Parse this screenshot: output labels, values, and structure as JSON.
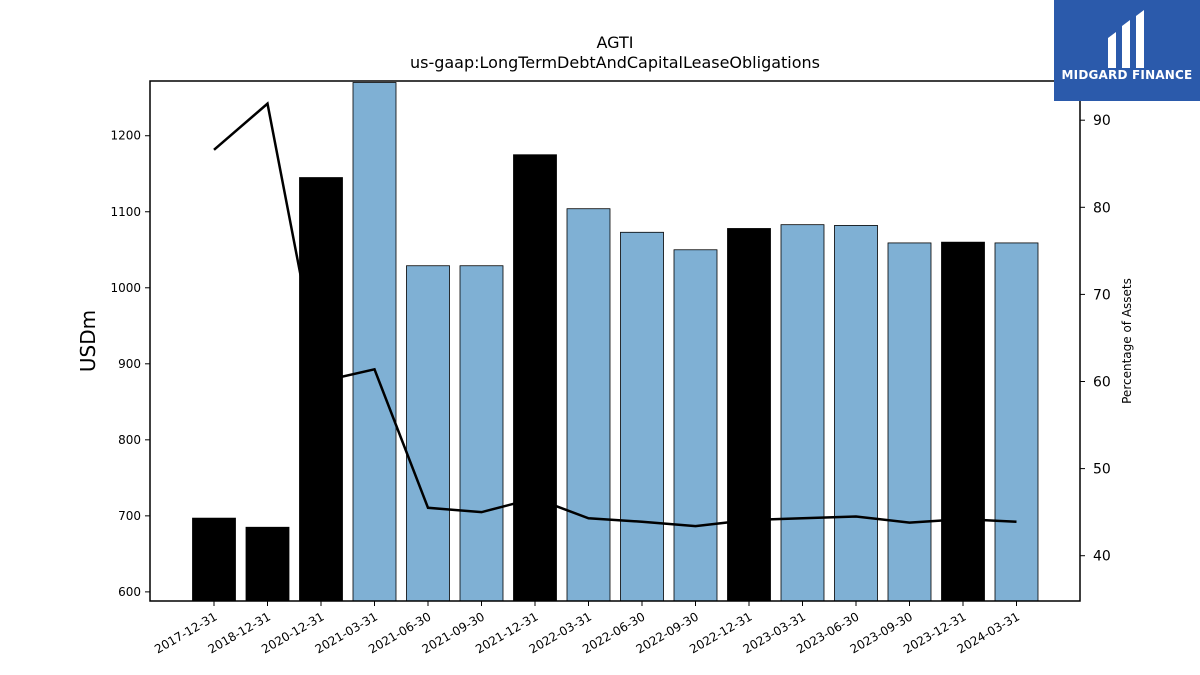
{
  "chart_data": {
    "type": "bar",
    "title": "AGTI",
    "subtitle": "us-gaap:LongTermDebtAndCapitalLeaseObligations",
    "ylabel": "USDm",
    "y2label": "Percentage of Assets",
    "categories": [
      "2017-12-31",
      "2018-12-31",
      "2020-12-31",
      "2021-03-31",
      "2021-06-30",
      "2021-09-30",
      "2021-12-31",
      "2022-03-31",
      "2022-06-30",
      "2022-09-30",
      "2022-12-31",
      "2023-03-31",
      "2023-06-30",
      "2023-09-30",
      "2023-12-31",
      "2024-03-31"
    ],
    "series": [
      {
        "type": "bar",
        "values": [
          697,
          685,
          1145,
          1270,
          1029,
          1029,
          1175,
          1104,
          1073,
          1050,
          1078,
          1083,
          1082,
          1059,
          1060,
          1059
        ],
        "bar_colors": [
          "#000000",
          "#000000",
          "#000000",
          "#7fb0d4",
          "#7fb0d4",
          "#7fb0d4",
          "#000000",
          "#7fb0d4",
          "#7fb0d4",
          "#7fb0d4",
          "#000000",
          "#7fb0d4",
          "#7fb0d4",
          "#7fb0d4",
          "#000000",
          "#7fb0d4"
        ]
      },
      {
        "type": "line",
        "axis": "right",
        "values": [
          86.6,
          91.9,
          60.0,
          61.4,
          45.5,
          45.0,
          46.6,
          44.3,
          43.9,
          43.4,
          44.1,
          44.3,
          44.5,
          43.8,
          44.2,
          43.9
        ],
        "color": "#000000"
      }
    ],
    "ylim": [
      588,
      1272
    ],
    "y_ticks": [
      600,
      700,
      800,
      900,
      1000,
      1100,
      1200
    ],
    "y2lim": [
      34.8,
      94.5
    ],
    "y2_ticks": [
      40,
      50,
      60,
      70,
      80,
      90
    ],
    "grid": false
  },
  "logo": {
    "text": "MIDGARD FINANCE",
    "color": "#2b5aab"
  }
}
